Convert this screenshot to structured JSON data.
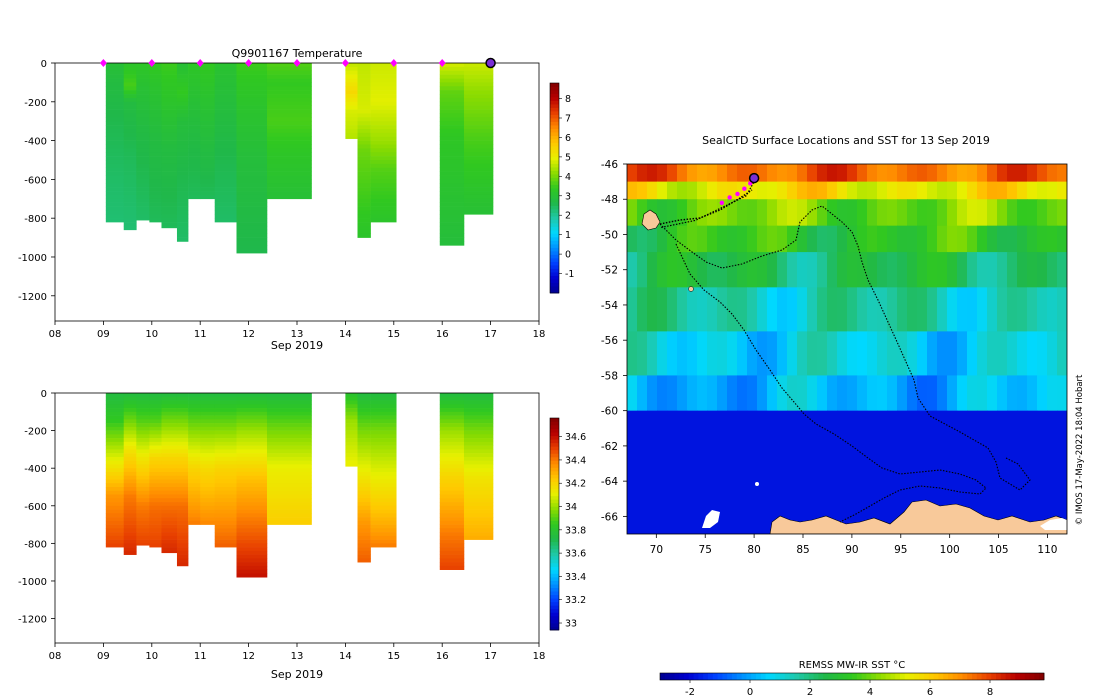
{
  "chart_data": [
    {
      "type": "heatmap",
      "panel": "temperature-section",
      "title": "Q9901167  Temperature",
      "xlabel": "Sep 2019",
      "x_ticks": [
        "08",
        "09",
        "10",
        "11",
        "12",
        "13",
        "14",
        "15",
        "16",
        "17",
        "18"
      ],
      "xlim": [
        8,
        18
      ],
      "ylim": [
        -1330,
        0
      ],
      "y_ticks": [
        "0",
        "-200",
        "-400",
        "-600",
        "-800",
        "-1000",
        "-1200"
      ],
      "y_tick_values": [
        0,
        -200,
        -400,
        -600,
        -800,
        -1000,
        -1200
      ],
      "colorbar": {
        "min": -2,
        "max": 8.8,
        "ticks": [
          "-1",
          "0",
          "1",
          "2",
          "3",
          "4",
          "5",
          "6",
          "7",
          "8"
        ],
        "tick_values": [
          -1,
          0,
          1,
          2,
          3,
          4,
          5,
          6,
          7,
          8
        ]
      },
      "profile_markers_day": [
        9.0,
        10.0,
        11.0,
        12.0,
        13.0,
        14.0,
        15.0,
        16.0
      ],
      "latest_marker_day": 17.0,
      "profiles": [
        {
          "x0": 9.05,
          "x1": 9.42,
          "depth": 820,
          "levels": [
            [
              0,
              3.0
            ],
            [
              100,
              2.8
            ],
            [
              300,
              2.6
            ],
            [
              600,
              2.4
            ],
            [
              820,
              2.3
            ]
          ]
        },
        {
          "x0": 9.42,
          "x1": 9.68,
          "depth": 860,
          "levels": [
            [
              0,
              3.2
            ],
            [
              120,
              3.6
            ],
            [
              200,
              2.8
            ],
            [
              500,
              2.5
            ],
            [
              860,
              2.3
            ]
          ]
        },
        {
          "x0": 9.68,
          "x1": 9.95,
          "depth": 810,
          "levels": [
            [
              0,
              3.3
            ],
            [
              150,
              3.0
            ],
            [
              400,
              2.7
            ],
            [
              810,
              2.4
            ]
          ]
        },
        {
          "x0": 9.95,
          "x1": 10.2,
          "depth": 820,
          "levels": [
            [
              0,
              3.4
            ],
            [
              150,
              3.1
            ],
            [
              400,
              2.8
            ],
            [
              820,
              2.5
            ]
          ]
        },
        {
          "x0": 10.2,
          "x1": 10.52,
          "depth": 850,
          "levels": [
            [
              0,
              3.5
            ],
            [
              200,
              3.2
            ],
            [
              450,
              2.8
            ],
            [
              850,
              2.5
            ]
          ]
        },
        {
          "x0": 10.52,
          "x1": 10.75,
          "depth": 920,
          "levels": [
            [
              0,
              3.0
            ],
            [
              150,
              3.4
            ],
            [
              300,
              2.9
            ],
            [
              600,
              2.6
            ],
            [
              920,
              2.4
            ]
          ]
        },
        {
          "x0": 10.75,
          "x1": 11.0,
          "depth": 700,
          "levels": [
            [
              0,
              3.3
            ],
            [
              200,
              3.0
            ],
            [
              450,
              2.7
            ],
            [
              700,
              2.5
            ]
          ]
        },
        {
          "x0": 11.0,
          "x1": 11.3,
          "depth": 700,
          "levels": [
            [
              0,
              3.4
            ],
            [
              200,
              3.1
            ],
            [
              450,
              2.8
            ],
            [
              700,
              2.5
            ]
          ]
        },
        {
          "x0": 11.3,
          "x1": 11.75,
          "depth": 820,
          "levels": [
            [
              0,
              3.1
            ],
            [
              200,
              2.9
            ],
            [
              500,
              2.6
            ],
            [
              820,
              2.4
            ]
          ]
        },
        {
          "x0": 11.75,
          "x1": 12.38,
          "depth": 980,
          "levels": [
            [
              0,
              3.5
            ],
            [
              200,
              3.2
            ],
            [
              500,
              2.9
            ],
            [
              980,
              2.6
            ]
          ]
        },
        {
          "x0": 12.38,
          "x1": 13.3,
          "depth": 700,
          "levels": [
            [
              0,
              3.7
            ],
            [
              100,
              3.4
            ],
            [
              300,
              3.6
            ],
            [
              450,
              3.3
            ],
            [
              700,
              3.0
            ]
          ]
        },
        {
          "x0": 14.0,
          "x1": 14.25,
          "depth": 390,
          "levels": [
            [
              0,
              4.6
            ],
            [
              150,
              5.4
            ],
            [
              250,
              4.8
            ],
            [
              390,
              4.5
            ]
          ]
        },
        {
          "x0": 14.25,
          "x1": 14.52,
          "depth": 900,
          "levels": [
            [
              0,
              4.6
            ],
            [
              250,
              4.8
            ],
            [
              450,
              3.9
            ],
            [
              900,
              3.2
            ]
          ]
        },
        {
          "x0": 14.52,
          "x1": 15.05,
          "depth": 820,
          "levels": [
            [
              0,
              4.7
            ],
            [
              200,
              4.9
            ],
            [
              400,
              4.3
            ],
            [
              550,
              3.7
            ],
            [
              820,
              3.2
            ]
          ]
        },
        {
          "x0": 15.95,
          "x1": 16.45,
          "depth": 940,
          "levels": [
            [
              0,
              4.8
            ],
            [
              150,
              3.8
            ],
            [
              400,
              3.3
            ],
            [
              940,
              2.9
            ]
          ]
        },
        {
          "x0": 16.45,
          "x1": 17.05,
          "depth": 780,
          "levels": [
            [
              0,
              4.7
            ],
            [
              150,
              4.2
            ],
            [
              400,
              3.6
            ],
            [
              780,
              3.0
            ]
          ]
        }
      ]
    },
    {
      "type": "heatmap",
      "panel": "salinity-section",
      "xlabel": "Sep 2019",
      "x_ticks": [
        "08",
        "09",
        "10",
        "11",
        "12",
        "13",
        "14",
        "15",
        "16",
        "17",
        "18"
      ],
      "xlim": [
        8,
        18
      ],
      "ylim": [
        -1330,
        0
      ],
      "y_ticks": [
        "0",
        "-200",
        "-400",
        "-600",
        "-800",
        "-1000",
        "-1200"
      ],
      "y_tick_values": [
        0,
        -200,
        -400,
        -600,
        -800,
        -1000,
        -1200
      ],
      "colorbar": {
        "min": 32.94,
        "max": 34.76,
        "ticks": [
          "33",
          "33.2",
          "33.4",
          "33.6",
          "33.8",
          "34",
          "34.2",
          "34.4",
          "34.6"
        ],
        "tick_values": [
          33,
          33.2,
          33.4,
          33.6,
          33.8,
          34,
          34.2,
          34.4,
          34.6
        ]
      },
      "profiles": [
        {
          "x0": 9.05,
          "x1": 9.42,
          "depth": 820,
          "levels": [
            [
              0,
              33.75
            ],
            [
              150,
              33.85
            ],
            [
              350,
              34.1
            ],
            [
              550,
              34.35
            ],
            [
              820,
              34.5
            ]
          ]
        },
        {
          "x0": 9.42,
          "x1": 9.68,
          "depth": 860,
          "levels": [
            [
              0,
              33.75
            ],
            [
              120,
              33.9
            ],
            [
              300,
              34.15
            ],
            [
              550,
              34.4
            ],
            [
              860,
              34.55
            ]
          ]
        },
        {
          "x0": 9.68,
          "x1": 9.95,
          "depth": 810,
          "levels": [
            [
              0,
              33.75
            ],
            [
              150,
              33.9
            ],
            [
              350,
              34.15
            ],
            [
              600,
              34.4
            ],
            [
              810,
              34.5
            ]
          ]
        },
        {
          "x0": 9.95,
          "x1": 10.2,
          "depth": 820,
          "levels": [
            [
              0,
              33.75
            ],
            [
              150,
              33.9
            ],
            [
              350,
              34.2
            ],
            [
              600,
              34.42
            ],
            [
              820,
              34.5
            ]
          ]
        },
        {
          "x0": 10.2,
          "x1": 10.52,
          "depth": 850,
          "levels": [
            [
              0,
              33.75
            ],
            [
              150,
              33.95
            ],
            [
              350,
              34.2
            ],
            [
              600,
              34.42
            ],
            [
              850,
              34.55
            ]
          ]
        },
        {
          "x0": 10.52,
          "x1": 10.75,
          "depth": 920,
          "levels": [
            [
              0,
              33.75
            ],
            [
              150,
              33.95
            ],
            [
              350,
              34.2
            ],
            [
              600,
              34.42
            ],
            [
              920,
              34.55
            ]
          ]
        },
        {
          "x0": 10.75,
          "x1": 11.0,
          "depth": 700,
          "levels": [
            [
              0,
              33.75
            ],
            [
              180,
              33.95
            ],
            [
              400,
              34.2
            ],
            [
              700,
              34.4
            ]
          ]
        },
        {
          "x0": 11.0,
          "x1": 11.3,
          "depth": 700,
          "levels": [
            [
              0,
              33.75
            ],
            [
              180,
              33.95
            ],
            [
              400,
              34.18
            ],
            [
              700,
              34.38
            ]
          ]
        },
        {
          "x0": 11.3,
          "x1": 11.75,
          "depth": 820,
          "levels": [
            [
              0,
              33.75
            ],
            [
              180,
              33.95
            ],
            [
              400,
              34.2
            ],
            [
              820,
              34.45
            ]
          ]
        },
        {
          "x0": 11.75,
          "x1": 12.38,
          "depth": 980,
          "levels": [
            [
              0,
              33.75
            ],
            [
              200,
              34.0
            ],
            [
              450,
              34.25
            ],
            [
              750,
              34.45
            ],
            [
              980,
              34.6
            ]
          ]
        },
        {
          "x0": 12.38,
          "x1": 13.3,
          "depth": 700,
          "levels": [
            [
              0,
              33.75
            ],
            [
              200,
              33.95
            ],
            [
              400,
              34.12
            ],
            [
              700,
              34.22
            ]
          ]
        },
        {
          "x0": 14.0,
          "x1": 14.25,
          "depth": 390,
          "levels": [
            [
              0,
              33.8
            ],
            [
              150,
              34.0
            ],
            [
              390,
              34.12
            ]
          ]
        },
        {
          "x0": 14.25,
          "x1": 14.52,
          "depth": 900,
          "levels": [
            [
              0,
              33.75
            ],
            [
              200,
              33.95
            ],
            [
              450,
              34.15
            ],
            [
              700,
              34.35
            ],
            [
              900,
              34.45
            ]
          ]
        },
        {
          "x0": 14.52,
          "x1": 15.05,
          "depth": 820,
          "levels": [
            [
              0,
              33.75
            ],
            [
              200,
              33.95
            ],
            [
              450,
              34.12
            ],
            [
              700,
              34.3
            ],
            [
              820,
              34.4
            ]
          ]
        },
        {
          "x0": 15.95,
          "x1": 16.45,
          "depth": 940,
          "levels": [
            [
              0,
              33.75
            ],
            [
              200,
              34.0
            ],
            [
              450,
              34.2
            ],
            [
              750,
              34.4
            ],
            [
              940,
              34.5
            ]
          ]
        },
        {
          "x0": 16.45,
          "x1": 17.05,
          "depth": 780,
          "levels": [
            [
              0,
              33.75
            ],
            [
              200,
              33.95
            ],
            [
              450,
              34.15
            ],
            [
              780,
              34.3
            ]
          ]
        }
      ]
    },
    {
      "type": "heatmap",
      "panel": "sst-map",
      "title": "SealCTD Surface Locations and SST for 13 Sep 2019",
      "xlim": [
        67,
        112
      ],
      "ylim": [
        -67,
        -46
      ],
      "x_ticks": [
        "70",
        "75",
        "80",
        "85",
        "90",
        "95",
        "100",
        "105",
        "110"
      ],
      "x_tick_values": [
        70,
        75,
        80,
        85,
        90,
        95,
        100,
        105,
        110
      ],
      "y_ticks": [
        "-46",
        "-48",
        "-50",
        "-52",
        "-54",
        "-56",
        "-58",
        "-60",
        "-62",
        "-64",
        "-66"
      ],
      "y_tick_values": [
        -46,
        -48,
        -50,
        -52,
        -54,
        -56,
        -58,
        -60,
        -62,
        -64,
        -66
      ],
      "colorbar": {
        "label": "REMSS MW-IR SST °C",
        "min": -3,
        "max": 9.8,
        "ticks": [
          "-2",
          "0",
          "2",
          "4",
          "6",
          "8"
        ],
        "tick_values": [
          -2,
          0,
          2,
          4,
          6,
          8
        ]
      },
      "sst_bands": [
        {
          "lat_north": -46,
          "lat_south": -47,
          "sst": 7.5
        },
        {
          "lat_north": -47,
          "lat_south": -48,
          "sst": 5.5
        },
        {
          "lat_north": -48,
          "lat_south": -49.5,
          "sst": 4.0
        },
        {
          "lat_north": -49.5,
          "lat_south": -51,
          "sst": 3.2
        },
        {
          "lat_north": -51,
          "lat_south": -53,
          "sst": 2.4
        },
        {
          "lat_north": -53,
          "lat_south": -55.5,
          "sst": 1.5
        },
        {
          "lat_north": -55.5,
          "lat_south": -58,
          "sst": 0.8
        },
        {
          "lat_north": -58,
          "lat_south": -60,
          "sst": 0.2
        },
        {
          "lat_north": -60,
          "lat_south": -67,
          "sst": -1.8
        }
      ],
      "track_lonlat": [
        [
          70.5,
          -49.6
        ],
        [
          74,
          -49.2
        ],
        [
          79.2,
          -47.8
        ],
        [
          80.1,
          -46.9
        ]
      ],
      "positions_lonlat": [
        [
          76.7,
          -48.2
        ],
        [
          77.5,
          -47.9
        ],
        [
          78.3,
          -47.7
        ],
        [
          79.0,
          -47.4
        ],
        [
          79.6,
          -47.1
        ]
      ],
      "latest_position_lonlat": [
        80.0,
        -46.8
      ],
      "credit": "© IMOS 17-May-2022 18:04 Hobart"
    }
  ],
  "colors": {
    "magenta_marker": "#ff00ff",
    "latest_marker_fill": "#7a2fd6",
    "land": "#f8c99a",
    "ice": "#ffffff"
  }
}
